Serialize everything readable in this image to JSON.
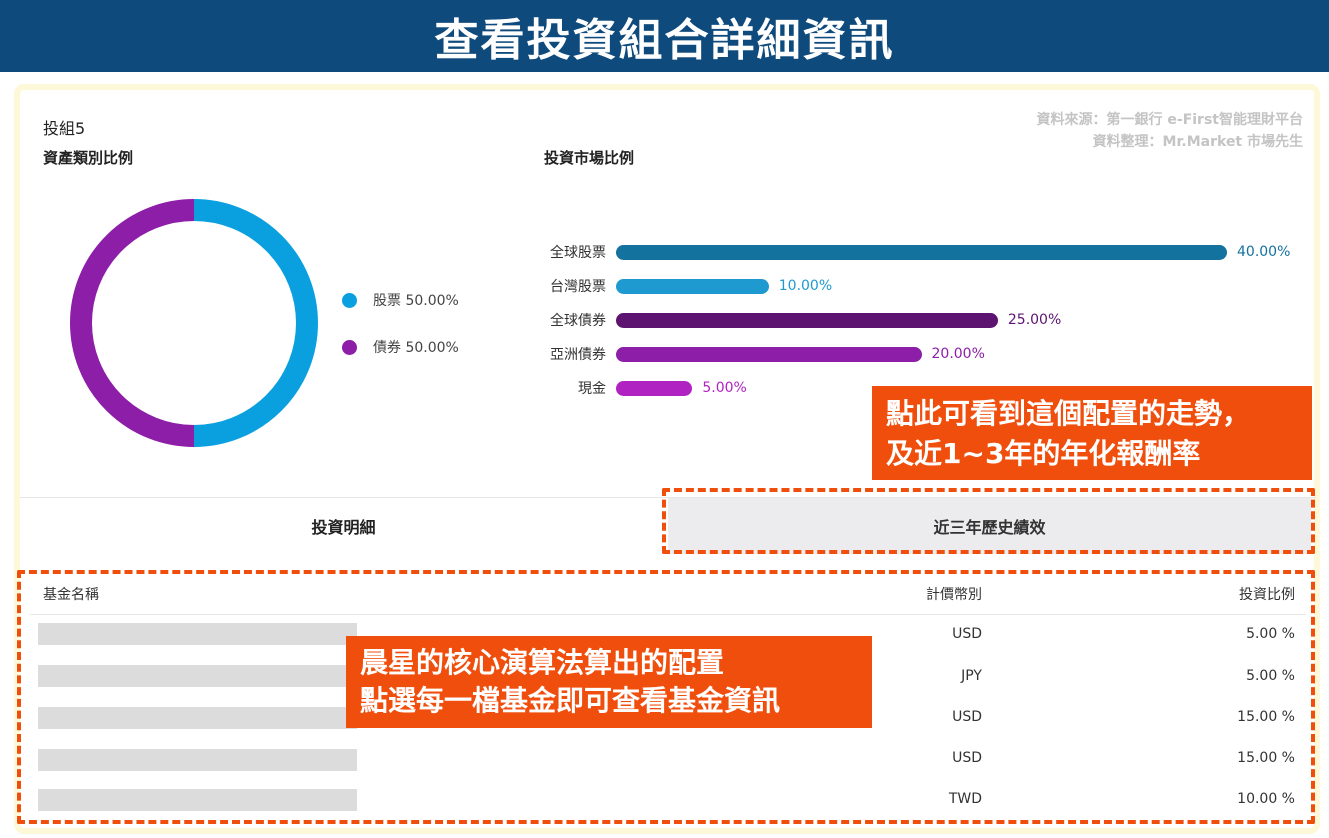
{
  "banner": {
    "title": "查看投資組合詳細資訊"
  },
  "portfolio": {
    "name": "投組5"
  },
  "source": {
    "line1": "資料來源：第一銀行 e-First智能理財平台",
    "line2": "資料整理：Mr.Market 市場先生"
  },
  "asset_section": {
    "title": "資產類別比例",
    "legend": [
      {
        "label": "股票 50.00%",
        "color": "#0aa0e0"
      },
      {
        "label": "債券 50.00%",
        "color": "#8c1ea8"
      }
    ]
  },
  "market_section": {
    "title": "投資市場比例"
  },
  "chart_data": [
    {
      "type": "pie",
      "categories": [
        "股票",
        "債券"
      ],
      "values": [
        50.0,
        50.0
      ],
      "colors": [
        "#0aa0e0",
        "#8c1ea8"
      ],
      "style": "donut"
    },
    {
      "type": "bar",
      "orientation": "horizontal",
      "categories": [
        "全球股票",
        "台灣股票",
        "全球債券",
        "亞洲債券",
        "現金"
      ],
      "values": [
        40.0,
        10.0,
        25.0,
        20.0,
        5.0
      ],
      "value_labels": [
        "40.00%",
        "10.00%",
        "25.00%",
        "20.00%",
        "5.00%"
      ],
      "colors": [
        "#14729e",
        "#1e9ad0",
        "#5d1470",
        "#8c1ea8",
        "#b023c2"
      ],
      "xlim": [
        0,
        40
      ]
    }
  ],
  "callouts": {
    "history": {
      "line1": "點此可看到這個配置的走勢，",
      "line2": "及近1~3年的年化報酬率"
    },
    "funds": {
      "line1": "晨星的核心演算法算出的配置",
      "line2": "點選每一檔基金即可查看基金資訊"
    }
  },
  "tabs": {
    "detail": "投資明細",
    "history": "近三年歷史績效"
  },
  "table": {
    "headers": {
      "name": "基金名稱",
      "currency": "計價幣別",
      "ratio": "投資比例"
    },
    "rows": [
      {
        "currency": "USD",
        "ratio": "5.00 %"
      },
      {
        "currency": "JPY",
        "ratio": "5.00 %"
      },
      {
        "currency": "USD",
        "ratio": "15.00 %"
      },
      {
        "currency": "USD",
        "ratio": "15.00 %"
      },
      {
        "currency": "TWD",
        "ratio": "10.00 %"
      }
    ]
  },
  "accent": {
    "callout": "#f04e0c",
    "banner": "#0e4a7c"
  }
}
